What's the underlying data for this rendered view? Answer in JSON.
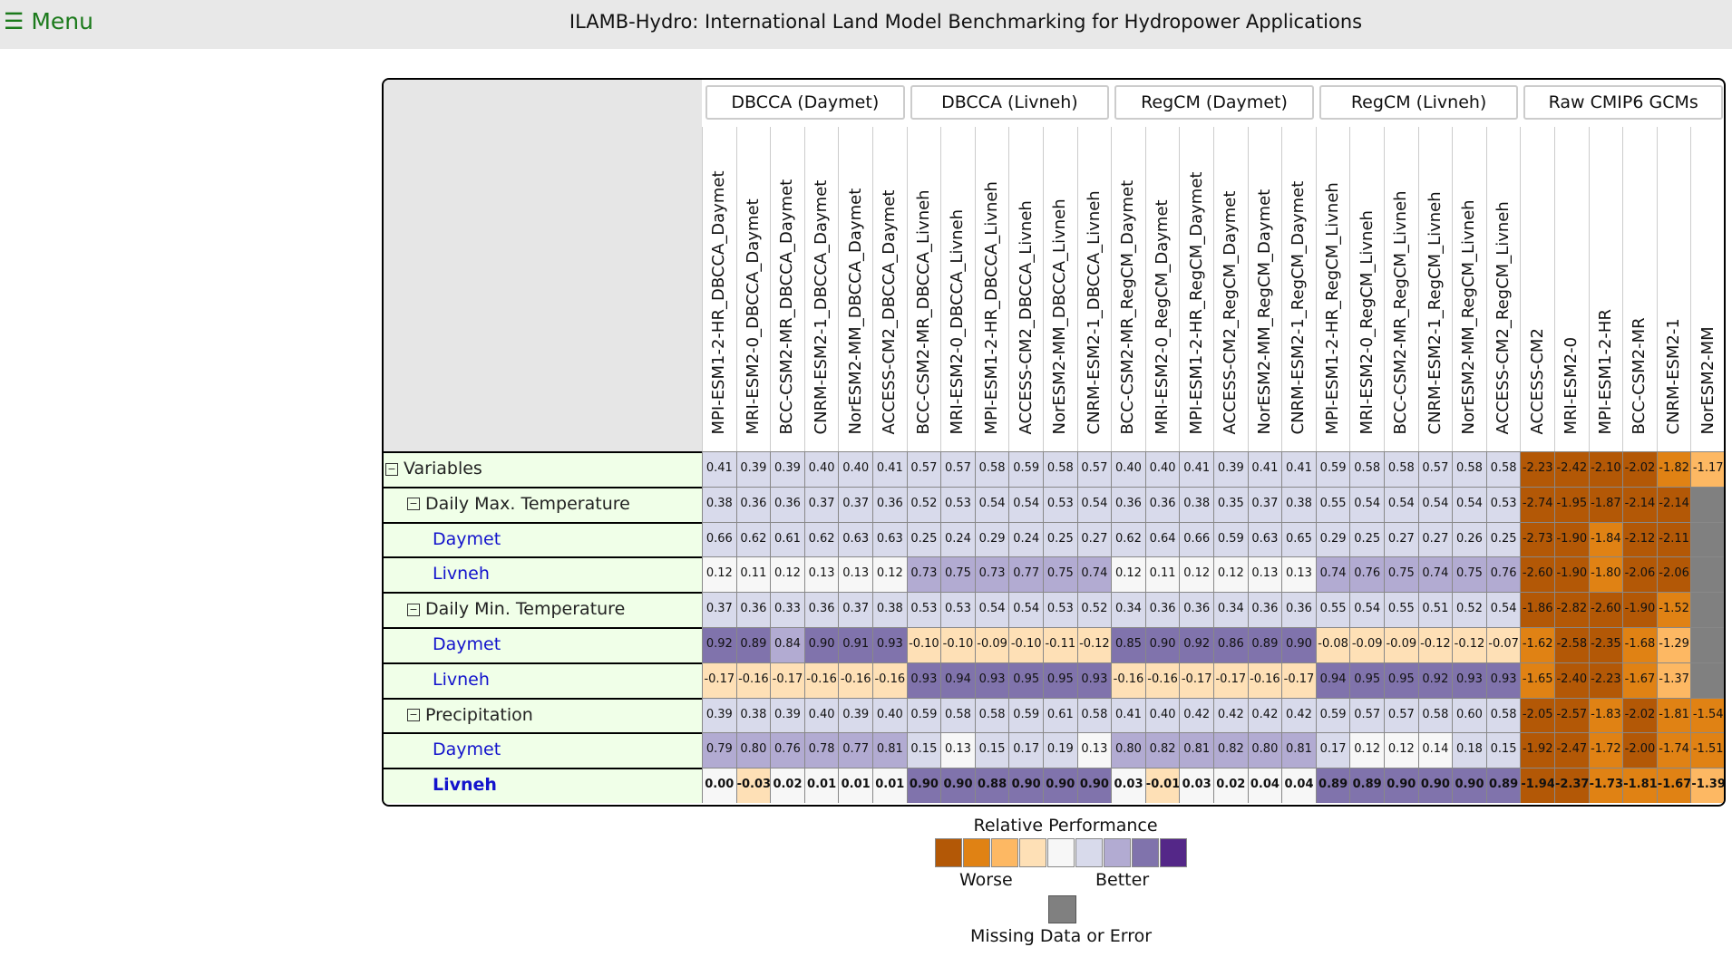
{
  "header": {
    "menu_label": "☰ Menu",
    "title": "ILAMB-Hydro: International Land Model Benchmarking for Hydropower Applications"
  },
  "groups": [
    "DBCCA (Daymet)",
    "DBCCA (Livneh)",
    "RegCM (Daymet)",
    "RegCM (Livneh)",
    "Raw CMIP6 GCMs"
  ],
  "columns": [
    "MPI-ESM1-2-HR_DBCCA_Daymet",
    "MRI-ESM2-0_DBCCA_Daymet",
    "BCC-CSM2-MR_DBCCA_Daymet",
    "CNRM-ESM2-1_DBCCA_Daymet",
    "NorESM2-MM_DBCCA_Daymet",
    "ACCESS-CM2_DBCCA_Daymet",
    "BCC-CSM2-MR_DBCCA_Livneh",
    "MRI-ESM2-0_DBCCA_Livneh",
    "MPI-ESM1-2-HR_DBCCA_Livneh",
    "ACCESS-CM2_DBCCA_Livneh",
    "NorESM2-MM_DBCCA_Livneh",
    "CNRM-ESM2-1_DBCCA_Livneh",
    "BCC-CSM2-MR_RegCM_Daymet",
    "MRI-ESM2-0_RegCM_Daymet",
    "MPI-ESM1-2-HR_RegCM_Daymet",
    "ACCESS-CM2_RegCM_Daymet",
    "NorESM2-MM_RegCM_Daymet",
    "CNRM-ESM2-1_RegCM_Daymet",
    "MPI-ESM1-2-HR_RegCM_Livneh",
    "MRI-ESM2-0_RegCM_Livneh",
    "BCC-CSM2-MR_RegCM_Livneh",
    "CNRM-ESM2-1_RegCM_Livneh",
    "NorESM2-MM_RegCM_Livneh",
    "ACCESS-CM2_RegCM_Livneh",
    "ACCESS-CM2",
    "MRI-ESM2-0",
    "MPI-ESM1-2-HR",
    "BCC-CSM2-MR",
    "CNRM-ESM2-1",
    "NorESM2-MM"
  ],
  "rows": [
    {
      "label": "Variables",
      "level": 0,
      "toggle": "⊟",
      "values": [
        "0.41",
        "0.39",
        "0.39",
        "0.40",
        "0.40",
        "0.41",
        "0.57",
        "0.57",
        "0.58",
        "0.59",
        "0.58",
        "0.57",
        "0.40",
        "0.40",
        "0.41",
        "0.39",
        "0.41",
        "0.41",
        "0.59",
        "0.58",
        "0.58",
        "0.57",
        "0.58",
        "0.58",
        "-2.23",
        "-2.42",
        "-2.10",
        "-2.02",
        "-1.82",
        "-1.17"
      ]
    },
    {
      "label": "Daily Max. Temperature",
      "level": 1,
      "toggle": "⊟",
      "values": [
        "0.38",
        "0.36",
        "0.36",
        "0.37",
        "0.37",
        "0.36",
        "0.52",
        "0.53",
        "0.54",
        "0.54",
        "0.53",
        "0.54",
        "0.36",
        "0.36",
        "0.38",
        "0.35",
        "0.37",
        "0.38",
        "0.55",
        "0.54",
        "0.54",
        "0.54",
        "0.54",
        "0.53",
        "-2.74",
        "-1.95",
        "-1.87",
        "-2.14",
        "-2.14",
        ""
      ]
    },
    {
      "label": "Daymet",
      "level": 2,
      "toggle": "",
      "values": [
        "0.66",
        "0.62",
        "0.61",
        "0.62",
        "0.63",
        "0.63",
        "0.25",
        "0.24",
        "0.29",
        "0.24",
        "0.25",
        "0.27",
        "0.62",
        "0.64",
        "0.66",
        "0.59",
        "0.63",
        "0.65",
        "0.29",
        "0.25",
        "0.27",
        "0.27",
        "0.26",
        "0.25",
        "-2.73",
        "-1.90",
        "-1.84",
        "-2.12",
        "-2.11",
        ""
      ]
    },
    {
      "label": "Livneh",
      "level": 2,
      "toggle": "",
      "values": [
        "0.12",
        "0.11",
        "0.12",
        "0.13",
        "0.13",
        "0.12",
        "0.73",
        "0.75",
        "0.73",
        "0.77",
        "0.75",
        "0.74",
        "0.12",
        "0.11",
        "0.12",
        "0.12",
        "0.13",
        "0.13",
        "0.74",
        "0.76",
        "0.75",
        "0.74",
        "0.75",
        "0.76",
        "-2.60",
        "-1.90",
        "-1.80",
        "-2.06",
        "-2.06",
        ""
      ]
    },
    {
      "label": "Daily Min. Temperature",
      "level": 1,
      "toggle": "⊟",
      "values": [
        "0.37",
        "0.36",
        "0.33",
        "0.36",
        "0.37",
        "0.38",
        "0.53",
        "0.53",
        "0.54",
        "0.54",
        "0.53",
        "0.52",
        "0.34",
        "0.36",
        "0.36",
        "0.34",
        "0.36",
        "0.36",
        "0.55",
        "0.54",
        "0.55",
        "0.51",
        "0.52",
        "0.54",
        "-1.86",
        "-2.82",
        "-2.60",
        "-1.90",
        "-1.52",
        ""
      ]
    },
    {
      "label": "Daymet",
      "level": 2,
      "toggle": "",
      "values": [
        "0.92",
        "0.89",
        "0.84",
        "0.90",
        "0.91",
        "0.93",
        "-0.10",
        "-0.10",
        "-0.09",
        "-0.10",
        "-0.11",
        "-0.12",
        "0.85",
        "0.90",
        "0.92",
        "0.86",
        "0.89",
        "0.90",
        "-0.08",
        "-0.09",
        "-0.09",
        "-0.12",
        "-0.12",
        "-0.07",
        "-1.62",
        "-2.58",
        "-2.35",
        "-1.68",
        "-1.29",
        ""
      ]
    },
    {
      "label": "Livneh",
      "level": 2,
      "toggle": "",
      "values": [
        "-0.17",
        "-0.16",
        "-0.17",
        "-0.16",
        "-0.16",
        "-0.16",
        "0.93",
        "0.94",
        "0.93",
        "0.95",
        "0.95",
        "0.93",
        "-0.16",
        "-0.16",
        "-0.17",
        "-0.17",
        "-0.16",
        "-0.17",
        "0.94",
        "0.95",
        "0.95",
        "0.92",
        "0.93",
        "0.93",
        "-1.65",
        "-2.40",
        "-2.23",
        "-1.67",
        "-1.37",
        ""
      ]
    },
    {
      "label": "Precipitation",
      "level": 1,
      "toggle": "⊟",
      "values": [
        "0.39",
        "0.38",
        "0.39",
        "0.40",
        "0.39",
        "0.40",
        "0.59",
        "0.58",
        "0.58",
        "0.59",
        "0.61",
        "0.58",
        "0.41",
        "0.40",
        "0.42",
        "0.42",
        "0.42",
        "0.42",
        "0.59",
        "0.57",
        "0.57",
        "0.58",
        "0.60",
        "0.58",
        "-2.05",
        "-2.57",
        "-1.83",
        "-2.02",
        "-1.81",
        "-1.54"
      ]
    },
    {
      "label": "Daymet",
      "level": 2,
      "toggle": "",
      "values": [
        "0.79",
        "0.80",
        "0.76",
        "0.78",
        "0.77",
        "0.81",
        "0.15",
        "0.13",
        "0.15",
        "0.17",
        "0.19",
        "0.13",
        "0.80",
        "0.82",
        "0.81",
        "0.82",
        "0.80",
        "0.81",
        "0.17",
        "0.12",
        "0.12",
        "0.14",
        "0.18",
        "0.15",
        "-1.92",
        "-2.47",
        "-1.72",
        "-2.00",
        "-1.74",
        "-1.51"
      ]
    },
    {
      "label": "Livneh",
      "level": 2,
      "toggle": "",
      "bold": true,
      "values": [
        "0.00",
        "-0.03",
        "0.02",
        "0.01",
        "0.01",
        "0.01",
        "0.90",
        "0.90",
        "0.88",
        "0.90",
        "0.90",
        "0.90",
        "0.03",
        "-0.01",
        "0.03",
        "0.02",
        "0.04",
        "0.04",
        "0.89",
        "0.89",
        "0.90",
        "0.90",
        "0.90",
        "0.89",
        "-1.94",
        "-2.37",
        "-1.73",
        "-1.81",
        "-1.67",
        "-1.39"
      ]
    }
  ],
  "colors": {
    "scale": [
      "#b35806",
      "#e08214",
      "#fdb863",
      "#fee0b6",
      "#f7f7f7",
      "#d8daeb",
      "#b2abd2",
      "#8073ac",
      "#542788"
    ],
    "missing": "#808080"
  },
  "legend": {
    "title": "Relative Performance",
    "worse": "Worse",
    "better": "Better",
    "missing": "Missing Data or Error"
  }
}
